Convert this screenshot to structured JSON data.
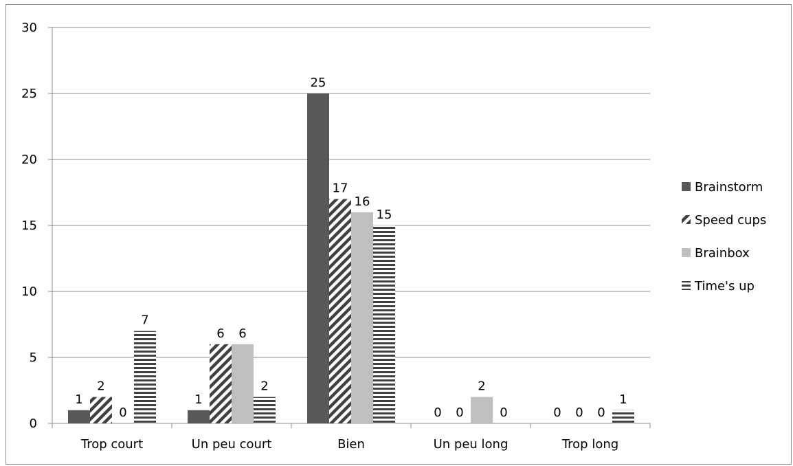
{
  "chart_data": {
    "type": "bar",
    "title": "",
    "xlabel": "",
    "ylabel": "",
    "categories": [
      "Trop court",
      "Un peu court",
      "Bien",
      "Un peu long",
      "Trop long"
    ],
    "ylim": [
      0,
      30
    ],
    "yticks": [
      0,
      5,
      10,
      15,
      20,
      25,
      30
    ],
    "grid": true,
    "legend_position": "right",
    "series": [
      {
        "name": "Brainstorm",
        "values": [
          1,
          1,
          25,
          0,
          0
        ],
        "color": "#595959",
        "pattern": "solid"
      },
      {
        "name": "Speed cups",
        "values": [
          2,
          6,
          17,
          0,
          0
        ],
        "color": "#404040",
        "pattern": "diagonal-stripes"
      },
      {
        "name": "Brainbox",
        "values": [
          0,
          6,
          16,
          2,
          0
        ],
        "color": "#bfbfbf",
        "pattern": "solid"
      },
      {
        "name": "Time's up",
        "values": [
          7,
          2,
          15,
          0,
          1
        ],
        "color": "#404040",
        "pattern": "horizontal-stripes"
      }
    ]
  }
}
